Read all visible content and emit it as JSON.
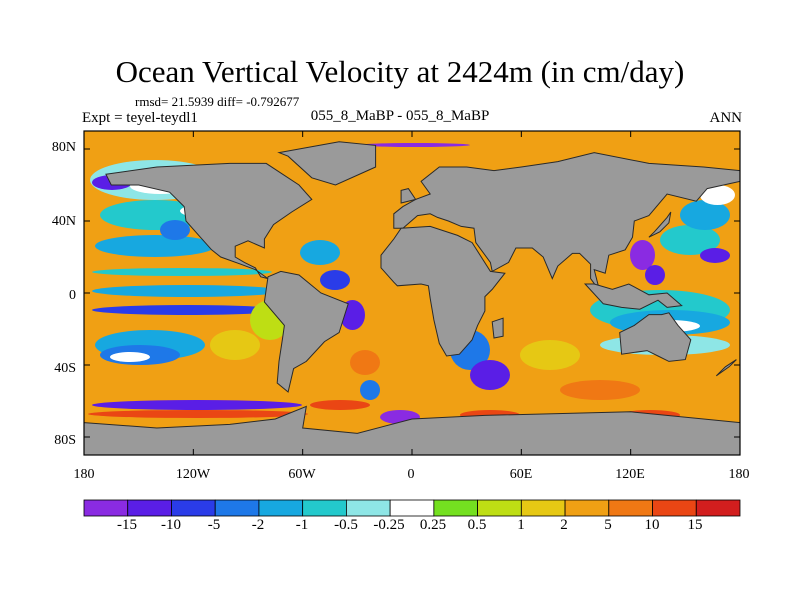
{
  "title": "Ocean Vertical Velocity at 2424m (in cm/day)",
  "stats": "rmsd= 21.5939 diff= -0.792677",
  "expt": "Expt = teyel-teydl1",
  "case_label": "055_8_MaBP - 055_8_MaBP",
  "season": "ANN",
  "y_axis": {
    "labels": [
      "80N",
      "40N",
      "0",
      "40S",
      "80S"
    ],
    "values": [
      80,
      40,
      0,
      -40,
      -80
    ]
  },
  "x_axis": {
    "labels": [
      "180",
      "120W",
      "60W",
      "0",
      "60E",
      "120E",
      "180"
    ],
    "values": [
      -180,
      -120,
      -60,
      0,
      60,
      120,
      180
    ]
  },
  "colorbar": {
    "labels": [
      "-15",
      "-10",
      "-5",
      "-2",
      "-1",
      "-0.5",
      "-0.25",
      "0.25",
      "0.5",
      "1",
      "2",
      "5",
      "10",
      "15"
    ],
    "colors": [
      "#8a2be2",
      "#5a1ee6",
      "#2a3ce8",
      "#1e78e8",
      "#17a8e0",
      "#23c9cc",
      "#8ee6e6",
      "#ffffff",
      "#74e020",
      "#bede14",
      "#e6c814",
      "#f0a014",
      "#f07814",
      "#ea4614",
      "#d21e1e"
    ]
  },
  "colors": {
    "land": "#9a9a9a",
    "coast": "#2a2a2a",
    "frame": "#000000"
  }
}
